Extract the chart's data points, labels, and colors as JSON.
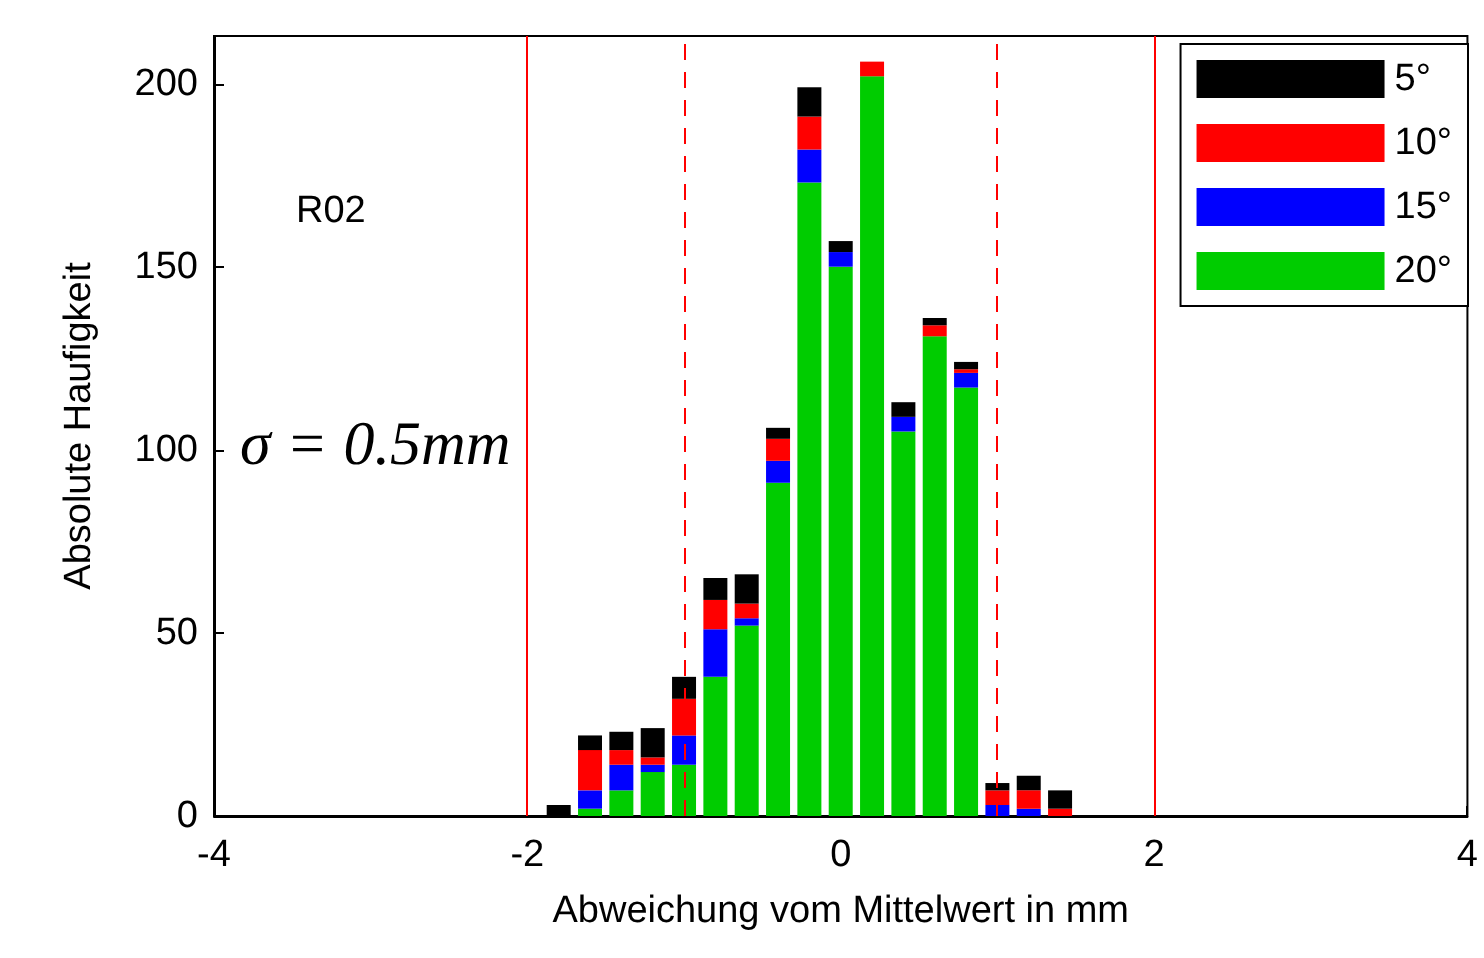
{
  "chart_data": {
    "type": "bar",
    "stacked": true,
    "xlabel": "Abweichung vom Mittelwert in mm",
    "ylabel": "Absolute Haufigkeit",
    "annotations": [
      "R02",
      "σ = 0.5mm"
    ],
    "x": [
      -1.8,
      -1.6,
      -1.4,
      -1.2,
      -1.0,
      -0.8,
      -0.6,
      -0.4,
      -0.2,
      0,
      0.2,
      0.4,
      0.6,
      0.8,
      1.0,
      1.2,
      1.4
    ],
    "series": [
      {
        "name": "20°",
        "color": "#00cc00",
        "values": [
          0,
          2,
          7,
          12,
          14,
          38,
          52,
          91,
          173,
          150,
          202,
          105,
          131,
          117,
          0,
          0,
          0
        ]
      },
      {
        "name": "15°",
        "color": "#0000ff",
        "values": [
          0,
          5,
          7,
          2,
          8,
          13,
          2,
          6,
          9,
          4,
          0,
          4,
          0,
          4,
          3,
          2,
          0
        ]
      },
      {
        "name": "10°",
        "color": "#ff0000",
        "values": [
          0,
          11,
          4,
          2,
          10,
          8,
          4,
          6,
          9,
          0,
          4,
          0,
          3,
          1,
          4,
          5,
          2
        ]
      },
      {
        "name": "5°",
        "color": "#000000",
        "values": [
          3,
          4,
          5,
          8,
          6,
          6,
          8,
          3,
          8,
          3,
          0,
          4,
          2,
          2,
          2,
          4,
          5
        ]
      }
    ],
    "xlim": [
      -4,
      4
    ],
    "xticks": [
      -4,
      -2,
      0,
      2,
      4
    ],
    "ylim": [
      0,
      213
    ],
    "yticks": [
      0,
      50,
      100,
      150,
      200
    ],
    "ref_lines": [
      {
        "axis": "x",
        "value": -2,
        "color": "#ff0000",
        "line_style": "solid"
      },
      {
        "axis": "x",
        "value": 2,
        "color": "#ff0000",
        "line_style": "solid"
      },
      {
        "axis": "x",
        "value": -1,
        "color": "#ff0000",
        "line_style": "dashed"
      },
      {
        "axis": "x",
        "value": 1,
        "color": "#ff0000",
        "line_style": "dashed"
      }
    ],
    "grid": false,
    "legend": "top right"
  }
}
